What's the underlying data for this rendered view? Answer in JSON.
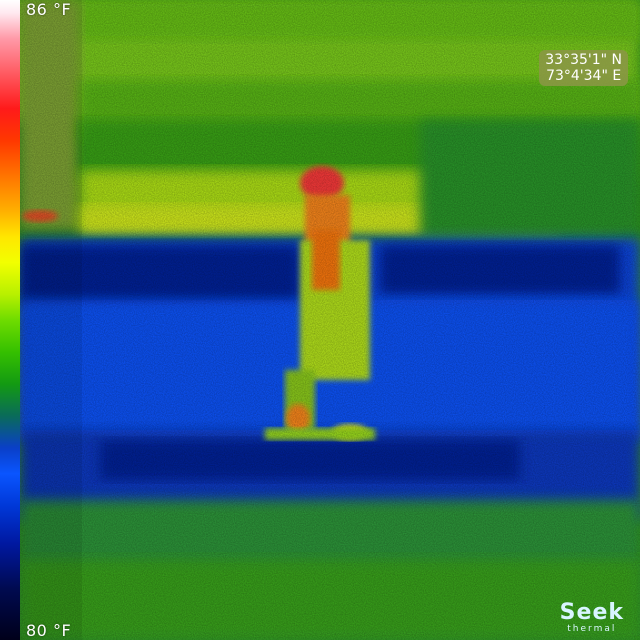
{
  "scale": {
    "max_label": "86 °F",
    "min_label": "80 °F"
  },
  "gps": {
    "latitude": "33°35'1\" N",
    "longitude": "73°4'34\" E"
  },
  "logo": {
    "word": "Seek",
    "sub": "thermal"
  },
  "colors": {
    "hot": "#ff2a2a",
    "warm": "#f2ff00",
    "mid": "#35c000",
    "cool": "#0a55ff",
    "cold": "#00146a"
  }
}
